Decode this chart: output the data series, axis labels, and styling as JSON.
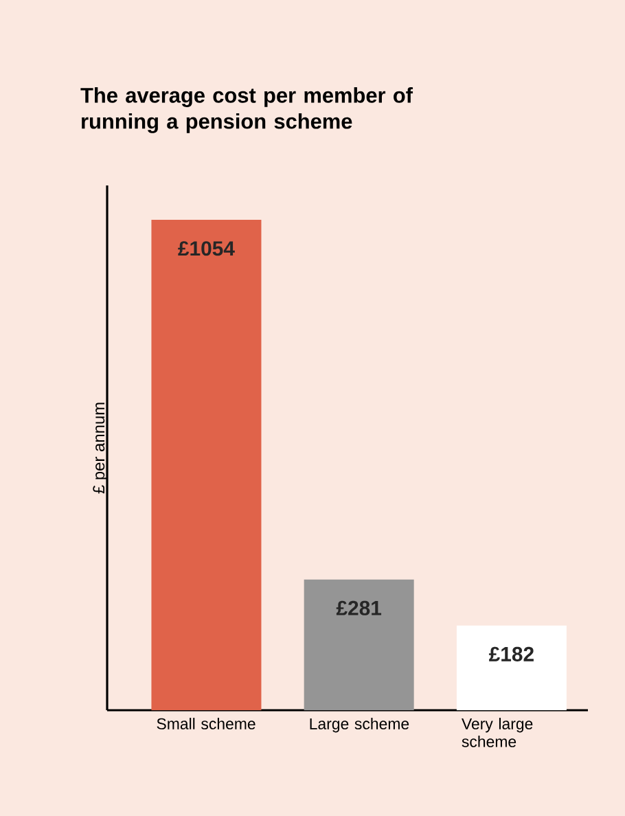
{
  "chart_data": {
    "type": "bar",
    "title": "The average cost per member of running a pension scheme",
    "ylabel": "£ per annum",
    "categories": [
      "Small scheme",
      "Large scheme",
      "Very large scheme"
    ],
    "values": [
      1054,
      281,
      182
    ],
    "colors": [
      "#e0634a",
      "#959595",
      "#ffffff"
    ],
    "value_labels": [
      "£1054",
      "£281",
      "£182"
    ],
    "ylim": [
      0,
      1128
    ],
    "legend": false
  }
}
